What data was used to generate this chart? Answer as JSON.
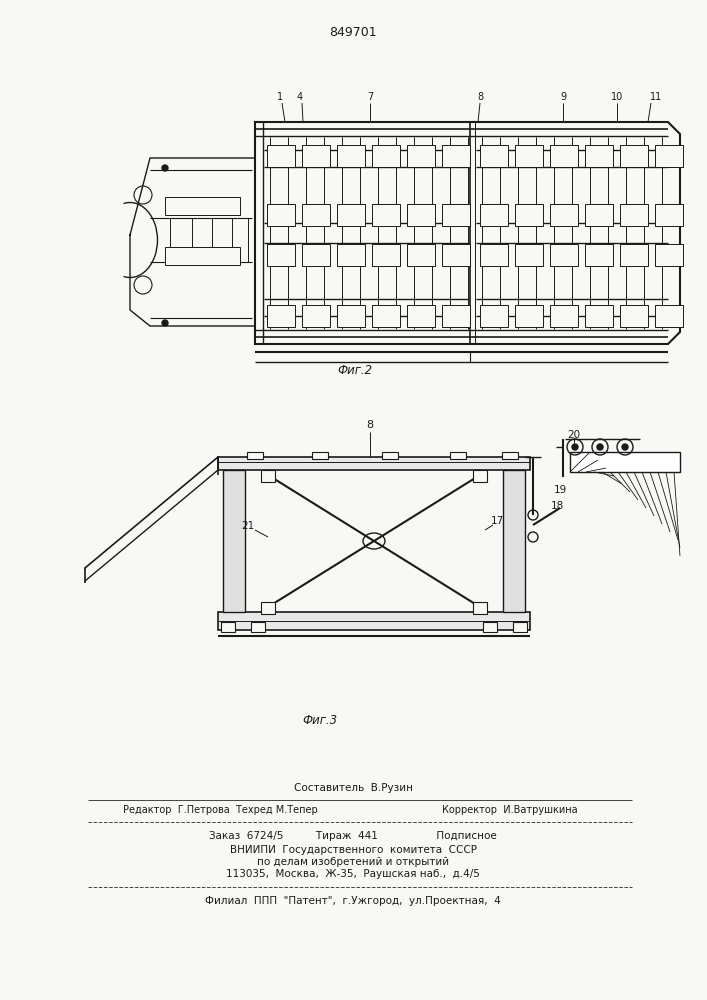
{
  "patent_number": "849701",
  "fig1_label": "Фиг.2",
  "fig2_label": "Фиг.3",
  "background_color": "#f8f8f5",
  "line_color": "#1a1a1a",
  "footer_line1_left": "Редактор  Г.Петрова  Техред М.Тепер",
  "footer_line1_center": "Составитель  В.Рузин",
  "footer_line1_right": "Корректор  И.Ватрушкина",
  "footer_line2": "Заказ  6724/5          Тираж  441                  Подписное",
  "footer_line3": "ВНИИПИ  Государственного  комитета  СССР",
  "footer_line4": "по делам изобретений и открытий",
  "footer_line5": "113035,  Москва,  Ж-35,  Раушская наб.,  д.4/5",
  "footer_line6": "Филиал  ППП  \"Патент\",  г.Ужгород,  ул.Проектная,  4"
}
